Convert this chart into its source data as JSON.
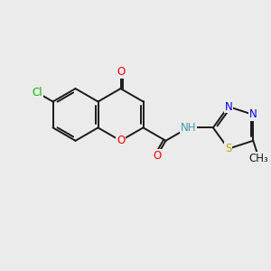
{
  "bg_color": "#ebebeb",
  "bond_color": "#1a1a1a",
  "bond_width": 1.4,
  "figsize": [
    3.0,
    3.0
  ],
  "dpi": 100,
  "xlim": [
    0,
    10
  ],
  "ylim": [
    0,
    10
  ],
  "colors": {
    "Cl": "#00bb00",
    "O": "#ff0000",
    "N": "#0000ee",
    "NH": "#4499aa",
    "S": "#bbaa00",
    "C": "#1a1a1a"
  },
  "fontsize": 8.5
}
